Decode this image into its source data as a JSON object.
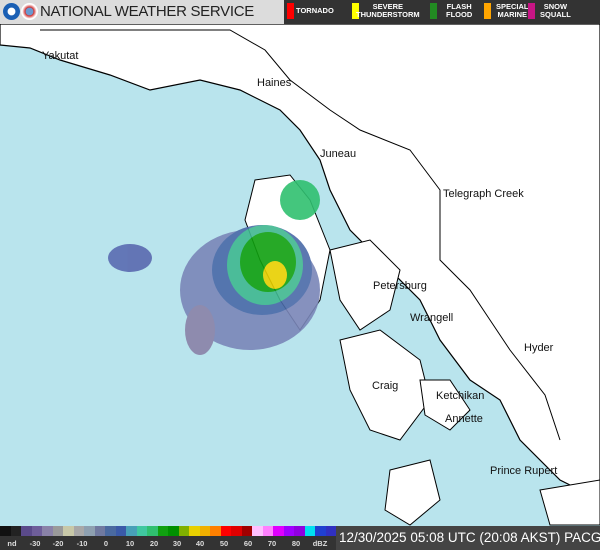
{
  "header": {
    "title": "NATIONAL WEATHER SERVICE",
    "logos": [
      "noaa-logo",
      "nws-logo"
    ]
  },
  "warnings": [
    {
      "label": "TORNADO",
      "color": "#ff0000"
    },
    {
      "label": "SEVERE\nTHUNDERSTORM",
      "color": "#ffff00"
    },
    {
      "label": "FLASH\nFLOOD",
      "color": "#228b22"
    },
    {
      "label": "SPECIAL\nMARINE",
      "color": "#ffa500"
    },
    {
      "label": "SNOW\nSQUALL",
      "color": "#c71585"
    }
  ],
  "places": [
    "Yakutat",
    "Haines",
    "Juneau",
    "Telegraph Creek",
    "Petersburg",
    "Wrangell",
    "Hyder",
    "Craig",
    "Ketchikan",
    "Annette",
    "Prince Rupert"
  ],
  "colorbar": {
    "labels": [
      "nd",
      "-30",
      "-20",
      "-10",
      "0",
      "10",
      "20",
      "30",
      "40",
      "50",
      "60",
      "70",
      "80",
      "dBZ"
    ],
    "colors": [
      "#111",
      "#222",
      "#5a4a8a",
      "#6e5e9a",
      "#8a82a8",
      "#9a9a9a",
      "#c8c8a8",
      "#a8a8a8",
      "#8ea0b0",
      "#707aa0",
      "#4a6aa0",
      "#3a5aa8",
      "#48a0b8",
      "#40c8a0",
      "#30c070",
      "#10a010",
      "#009000",
      "#80b000",
      "#e8d000",
      "#f0b000",
      "#ff8000",
      "#ff0000",
      "#e00000",
      "#a00000",
      "#ffc0ff",
      "#ff80ff",
      "#e000ff",
      "#a000ff",
      "#9000e0",
      "#00e0f0",
      "#2040d0",
      "#3030c0"
    ]
  },
  "timestamp": "12/30/2025 05:08 UTC (20:08 AKST) PACG",
  "colors": {
    "water": "#b9e4ed",
    "land": "#ffffff",
    "header_bg": "#dcdcdc",
    "warning_bg": "#333333"
  }
}
